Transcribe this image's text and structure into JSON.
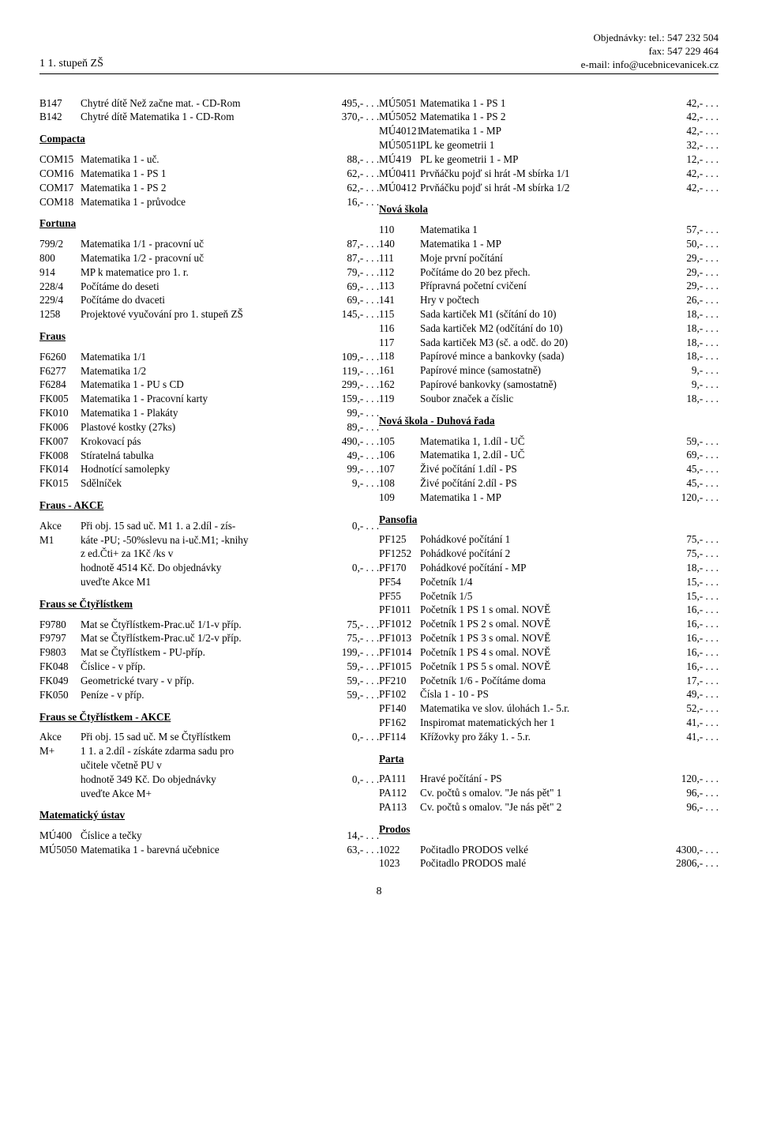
{
  "header": {
    "left": "1 1. stupeň ZŠ",
    "right1": "Objednávky: tel.: 547 232 504",
    "right2": "fax: 547 229 464",
    "right3": "e-mail: info@ucebnicevanicek.cz"
  },
  "pageNumber": "8",
  "left": {
    "topRows": [
      {
        "code": "B147",
        "desc": "Chytré dítě Než začne mat. - CD-Rom",
        "price": "495,- . . ."
      },
      {
        "code": "B142",
        "desc": "Chytré dítě Matematika 1 - CD-Rom",
        "price": "370,- . . ."
      }
    ],
    "sections": [
      {
        "title": "Compacta",
        "rows": [
          {
            "code": "COM15",
            "desc": "Matematika 1 - uč.",
            "price": "88,- . . ."
          },
          {
            "code": "COM16",
            "desc": "Matematika 1 - PS 1",
            "price": "62,- . . ."
          },
          {
            "code": "COM17",
            "desc": "Matematika 1 - PS 2",
            "price": "62,- . . ."
          },
          {
            "code": "COM18",
            "desc": "Matematika 1 - průvodce",
            "price": "16,- . . ."
          }
        ]
      },
      {
        "title": "Fortuna",
        "rows": [
          {
            "code": "799/2",
            "desc": "Matematika 1/1 - pracovní uč",
            "price": "87,- . . ."
          },
          {
            "code": "800",
            "desc": "Matematika 1/2 - pracovní uč",
            "price": "87,- . . ."
          },
          {
            "code": "914",
            "desc": "MP k matematice pro 1. r.",
            "price": "79,- . . ."
          },
          {
            "code": "228/4",
            "desc": "Počítáme do deseti",
            "price": "69,- . . ."
          },
          {
            "code": "229/4",
            "desc": "Počítáme do dvaceti",
            "price": "69,- . . ."
          },
          {
            "code": "1258",
            "desc": "Projektové vyučování pro 1. stupeň ZŠ",
            "price": "145,- . . ."
          }
        ]
      },
      {
        "title": "Fraus",
        "rows": [
          {
            "code": "F6260",
            "desc": "Matematika 1/1",
            "price": "109,- . . ."
          },
          {
            "code": "F6277",
            "desc": "Matematika 1/2",
            "price": "119,- . . ."
          },
          {
            "code": "F6284",
            "desc": "Matematika 1 - PU s CD",
            "price": "299,- . . ."
          },
          {
            "code": "FK005",
            "desc": "Matematika 1 - Pracovní karty",
            "price": "159,- . . ."
          },
          {
            "code": "FK010",
            "desc": "Matematika 1 - Plakáty",
            "price": "99,- . . ."
          },
          {
            "code": "FK006",
            "desc": "Plastové kostky (27ks)",
            "price": "89,- . . ."
          },
          {
            "code": "FK007",
            "desc": "Krokovací pás",
            "price": "490,- . . ."
          },
          {
            "code": "FK008",
            "desc": "Stíratelná tabulka",
            "price": "49,- . . ."
          },
          {
            "code": "FK014",
            "desc": "Hodnotící samolepky",
            "price": "99,- . . ."
          },
          {
            "code": "FK015",
            "desc": "Sdělníček",
            "price": "9,- . . ."
          }
        ]
      },
      {
        "title": "Fraus - AKCE",
        "multi": [
          {
            "code": "Akce M1",
            "lines": [
              "Při obj. 15 sad uč. M1 1. a 2.díl - zís-",
              "káte -PU; -50%slevu na i-uč.M1; -knihy",
              "z ed.Čti+ za 1Kč /ks v",
              "hodnotě 4514 Kč. Do objednávky",
              "uveďte Akce M1"
            ],
            "prices": [
              "0,- . . .",
              "",
              "",
              "0,- . . .",
              ""
            ]
          }
        ]
      },
      {
        "title": "Fraus se Čtyřlístkem",
        "rows": [
          {
            "code": "F9780",
            "desc": "Mat se Čtyřlístkem-Prac.uč 1/1-v příp.",
            "price": "75,- . . ."
          },
          {
            "code": "F9797",
            "desc": "Mat se Čtyřlístkem-Prac.uč 1/2-v příp.",
            "price": "75,- . . ."
          },
          {
            "code": "F9803",
            "desc": "Mat se Čtyřlístkem - PU-příp.",
            "price": "199,- . . ."
          },
          {
            "code": "FK048",
            "desc": "Číslice - v příp.",
            "price": "59,- . . ."
          },
          {
            "code": "FK049",
            "desc": "Geometrické tvary - v příp.",
            "price": "59,- . . ."
          },
          {
            "code": "FK050",
            "desc": "Peníze - v příp.",
            "price": "59,- . . ."
          }
        ]
      },
      {
        "title": "Fraus se Čtyřlístkem - AKCE",
        "multi": [
          {
            "code": "Akce M+",
            "lines": [
              "Při obj. 15 sad uč. M se Čtyřlístkem",
              "1 1. a 2.díl - získáte zdarma sadu pro",
              "učitele včetně PU v",
              "hodnotě 349 Kč. Do objednávky",
              "uveďte Akce M+"
            ],
            "prices": [
              "0,- . . .",
              "",
              "",
              "0,- . . .",
              ""
            ]
          }
        ]
      },
      {
        "title": "Matematický ústav",
        "rows": [
          {
            "code": "MÚ400",
            "desc": "Číslice a tečky",
            "price": "14,- . . ."
          },
          {
            "code": "MÚ5050",
            "desc": "Matematika 1 - barevná učebnice",
            "price": "63,- . . ."
          }
        ]
      }
    ]
  },
  "right": {
    "topRows": [
      {
        "code": "MÚ5051",
        "desc": "Matematika 1 - PS 1",
        "price": "42,- . . ."
      },
      {
        "code": "MÚ5052",
        "desc": "Matematika 1 - PS 2",
        "price": "42,- . . ."
      },
      {
        "code": "MÚ40121",
        "desc": "Matematika 1 - MP",
        "price": "42,- . . ."
      },
      {
        "code": "MÚ50511",
        "desc": "PL ke geometrii 1",
        "price": "32,- . . ."
      },
      {
        "code": "MÚ419",
        "desc": "PL ke geometrii 1 - MP",
        "price": "12,- . . ."
      },
      {
        "code": "MÚ0411",
        "desc": "Prvňáčku pojď si hrát -M sbírka 1/1",
        "price": "42,- . . ."
      },
      {
        "code": "MÚ0412",
        "desc": "Prvňáčku pojď si hrát -M sbírka 1/2",
        "price": "42,- . . ."
      }
    ],
    "sections": [
      {
        "title": "Nová škola",
        "rows": [
          {
            "code": "110",
            "desc": "Matematika 1",
            "price": "57,- . . ."
          },
          {
            "code": "140",
            "desc": "Matematika 1 - MP",
            "price": "50,- . . ."
          },
          {
            "code": "111",
            "desc": "Moje první počítání",
            "price": "29,- . . ."
          },
          {
            "code": "112",
            "desc": "Počítáme do 20 bez přech.",
            "price": "29,- . . ."
          },
          {
            "code": "113",
            "desc": "Přípravná početní cvičení",
            "price": "29,- . . ."
          },
          {
            "code": "141",
            "desc": "Hry v počtech",
            "price": "26,- . . ."
          },
          {
            "code": "115",
            "desc": "Sada kartiček M1 (sčítání do 10)",
            "price": "18,- . . ."
          },
          {
            "code": "116",
            "desc": "Sada kartiček M2 (odčítání do 10)",
            "price": "18,- . . ."
          },
          {
            "code": "117",
            "desc": "Sada kartiček M3 (sč. a odč. do 20)",
            "price": "18,- . . ."
          },
          {
            "code": "118",
            "desc": "Papírové mince a bankovky (sada)",
            "price": "18,- . . ."
          },
          {
            "code": "161",
            "desc": "Papírové mince (samostatně)",
            "price": "9,- . . ."
          },
          {
            "code": "162",
            "desc": "Papírové bankovky (samostatně)",
            "price": "9,- . . ."
          },
          {
            "code": "119",
            "desc": "Soubor značek a číslic",
            "price": "18,- . . ."
          }
        ]
      },
      {
        "title": "Nová škola - Duhová řada",
        "rows": [
          {
            "code": "105",
            "desc": "Matematika 1, 1.díl - UČ",
            "price": "59,- . . ."
          },
          {
            "code": "106",
            "desc": "Matematika 1, 2.díl - UČ",
            "price": "69,- . . ."
          },
          {
            "code": "107",
            "desc": "Živé počítání 1.díl - PS",
            "price": "45,- . . ."
          },
          {
            "code": "108",
            "desc": "Živé počítání 2.díl - PS",
            "price": "45,- . . ."
          },
          {
            "code": "109",
            "desc": "Matematika 1 - MP",
            "price": "120,- . . ."
          }
        ]
      },
      {
        "title": "Pansofia",
        "rows": [
          {
            "code": "PF125",
            "desc": "Pohádkové počítání 1",
            "price": "75,- . . ."
          },
          {
            "code": "PF1252",
            "desc": "Pohádkové počítání 2",
            "price": "75,- . . ."
          },
          {
            "code": "PF170",
            "desc": "Pohádkové počítání - MP",
            "price": "18,- . . ."
          },
          {
            "code": "PF54",
            "desc": "Početník 1/4",
            "price": "15,- . . ."
          },
          {
            "code": "PF55",
            "desc": "Početník 1/5",
            "price": "15,- . . ."
          },
          {
            "code": "PF1011",
            "desc": "Početník 1 PS 1 s omal. NOVĚ",
            "price": "16,- . . ."
          },
          {
            "code": "PF1012",
            "desc": "Početník 1 PS 2 s omal. NOVĚ",
            "price": "16,- . . ."
          },
          {
            "code": "PF1013",
            "desc": "Početník 1 PS 3 s omal. NOVĚ",
            "price": "16,- . . ."
          },
          {
            "code": "PF1014",
            "desc": "Početník 1 PS 4 s omal. NOVĚ",
            "price": "16,- . . ."
          },
          {
            "code": "PF1015",
            "desc": "Početník 1 PS 5 s omal. NOVĚ",
            "price": "16,- . . ."
          },
          {
            "code": "PF210",
            "desc": "Početník 1/6 - Počítáme doma",
            "price": "17,- . . ."
          },
          {
            "code": "PF102",
            "desc": "Čísla 1 - 10 - PS",
            "price": "49,- . . ."
          },
          {
            "code": "PF140",
            "desc": "Matematika ve slov. úlohách 1.- 5.r.",
            "price": "52,- . . ."
          },
          {
            "code": "PF162",
            "desc": "Inspiromat matematických her 1",
            "price": "41,- . . ."
          },
          {
            "code": "PF114",
            "desc": "Křížovky pro žáky 1. - 5.r.",
            "price": "41,- . . ."
          }
        ]
      },
      {
        "title": "Parta",
        "rows": [
          {
            "code": "PA111",
            "desc": "Hravé počítání - PS",
            "price": "120,- . . ."
          },
          {
            "code": "PA112",
            "desc": "Cv. počtů s omalov. \"Je nás pět\" 1",
            "price": "96,- . . ."
          },
          {
            "code": "PA113",
            "desc": "Cv. počtů s omalov. \"Je nás pět\" 2",
            "price": "96,- . . ."
          }
        ]
      },
      {
        "title": "Prodos",
        "rows": [
          {
            "code": "1022",
            "desc": "Počitadlo PRODOS velké",
            "price": "4300,- . . ."
          },
          {
            "code": "1023",
            "desc": "Počitadlo PRODOS malé",
            "price": "2806,- . . ."
          }
        ]
      }
    ]
  }
}
